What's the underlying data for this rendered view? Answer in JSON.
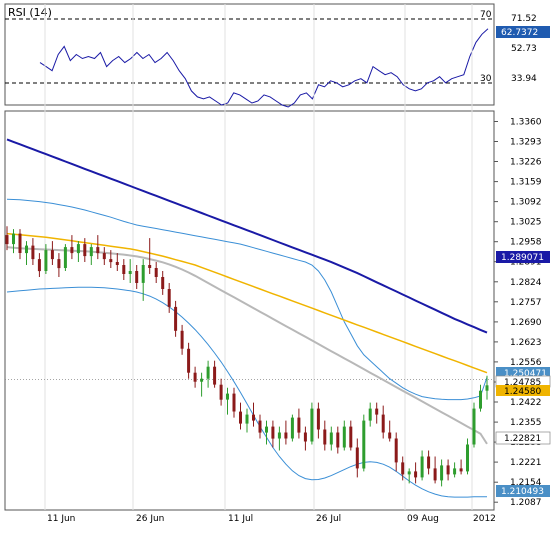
{
  "chart_data": [
    {
      "type": "line",
      "title": "RSI (14)",
      "ylim": [
        25,
        75
      ],
      "y_ticks": [
        71.52,
        52.73,
        33.94
      ],
      "reference_levels": [
        70,
        30
      ],
      "last_value_label": "62.7372",
      "series": [
        {
          "name": "RSI (14)",
          "color": "#1a1aa6",
          "values": [
            46,
            44,
            42,
            50,
            54,
            47,
            50,
            48,
            49,
            48,
            51,
            44,
            47,
            49,
            46,
            48,
            51,
            48,
            50,
            46,
            48,
            51,
            47,
            42,
            38,
            32,
            29,
            28,
            29,
            27,
            25,
            26,
            31,
            30,
            28,
            26,
            27,
            30,
            29,
            27,
            25,
            24,
            26,
            30,
            31,
            28,
            35,
            34,
            37,
            36,
            34,
            35,
            37,
            38,
            36,
            44,
            42,
            40,
            41,
            39,
            35,
            33,
            32,
            33,
            36,
            37,
            39,
            36,
            38,
            39,
            40,
            49,
            56,
            60,
            62.7
          ]
        }
      ]
    },
    {
      "type": "candlestick",
      "x_tick_labels": [
        "11 Jun",
        "26 Jun",
        "11 Jul",
        "26 Jul",
        "09 Aug",
        "2012"
      ],
      "y_tick_labels": [
        "1.3360",
        "1.3293",
        "1.3226",
        "1.3159",
        "1.3092",
        "1.3025",
        "1.2958",
        "1.2891",
        "1.2824",
        "1.2757",
        "1.2690",
        "1.2623",
        "1.2556",
        "1.2489",
        "1.2422",
        "1.2355",
        "1.2288",
        "1.2221",
        "1.2154",
        "1.2087"
      ],
      "ylim": [
        1.2061,
        1.3395
      ],
      "price_labels": [
        "1.250471",
        "1.24785",
        "1.24580",
        "1.289071",
        "1.22821",
        "1.210493"
      ],
      "colors": {
        "up": "#2e9d2e",
        "down": "#8b1a1a",
        "ma_long": "#1a1aa6",
        "ma_mid": "#f0b400",
        "ma_short": "#b8b8b8",
        "bands": "#3b8fd6"
      },
      "series": [
        {
          "name": "ma_long",
          "values": [
            1.33,
            1.3296,
            1.3292,
            1.3288,
            1.3284,
            1.328,
            1.3276,
            1.3272,
            1.3268,
            1.3264,
            1.326,
            1.3256,
            1.3252,
            1.3248,
            1.3244,
            1.324,
            1.3236,
            1.3232,
            1.3228,
            1.3224,
            1.322,
            1.3216,
            1.3212,
            1.3208,
            1.3204,
            1.32,
            1.3196,
            1.3192,
            1.3188,
            1.3184,
            1.318,
            1.3176,
            1.3172,
            1.3168,
            1.3164,
            1.316,
            1.3156,
            1.3152,
            1.3148,
            1.3144,
            1.314,
            1.3136,
            1.3132,
            1.3128,
            1.3124,
            1.312,
            1.3116,
            1.3112,
            1.3108,
            1.3104,
            1.31,
            1.3095,
            1.309,
            1.3085,
            1.308,
            1.3074,
            1.3068,
            1.3062,
            1.3056,
            1.305,
            1.3044,
            1.3038,
            1.3032,
            1.3026,
            1.302,
            1.3014,
            1.3008,
            1.3002,
            1.2996,
            1.299,
            1.2985,
            1.298,
            1.2975,
            1.297,
            1.2965
          ]
        },
        {
          "name": "ma_mid",
          "values": [
            1.2985,
            1.2983,
            1.2981,
            1.2979,
            1.2977,
            1.2975,
            1.2973,
            1.297,
            1.2967,
            1.2964,
            1.2961,
            1.2958,
            1.2955,
            1.2952,
            1.2949,
            1.2946,
            1.2943,
            1.294,
            1.2937,
            1.2934,
            1.293,
            1.2925,
            1.292,
            1.2915,
            1.291,
            1.2904,
            1.2898,
            1.2892,
            1.2886,
            1.288,
            1.2872,
            1.2864,
            1.2856,
            1.2848,
            1.284,
            1.2832,
            1.2824,
            1.2816,
            1.2808,
            1.28,
            1.2792,
            1.2784,
            1.2776,
            1.2768,
            1.276,
            1.2752,
            1.2744,
            1.2736,
            1.2728,
            1.272,
            1.2712,
            1.2704,
            1.2696,
            1.2688,
            1.268,
            1.2672,
            1.2664,
            1.2656,
            1.2648,
            1.264,
            1.2632,
            1.2624,
            1.2616,
            1.2608,
            1.26,
            1.2592,
            1.2584,
            1.2576,
            1.2568,
            1.256,
            1.2552,
            1.2544,
            1.2536,
            1.2528,
            1.252
          ]
        },
        {
          "name": "ma_short",
          "values": [
            1.294,
            1.2938,
            1.2936,
            1.2935,
            1.2934,
            1.2933,
            1.2932,
            1.2931,
            1.293,
            1.2929,
            1.2928,
            1.2927,
            1.2926,
            1.2925,
            1.2923,
            1.2921,
            1.2919,
            1.2917,
            1.2915,
            1.2912,
            1.2909,
            1.2905,
            1.29,
            1.2895,
            1.2889,
            1.2882,
            1.2874,
            1.2865,
            1.2855,
            1.2844,
            1.2832,
            1.282,
            1.2808,
            1.2796,
            1.2784,
            1.2772,
            1.276,
            1.2748,
            1.2736,
            1.2724,
            1.2712,
            1.27,
            1.2688,
            1.2676,
            1.2664,
            1.2652,
            1.264,
            1.2628,
            1.2616,
            1.2604,
            1.2592,
            1.258,
            1.2568,
            1.2556,
            1.2544,
            1.2532,
            1.252,
            1.2508,
            1.2496,
            1.2484,
            1.2472,
            1.246,
            1.2448,
            1.2436,
            1.2424,
            1.2412,
            1.24,
            1.2388,
            1.2376,
            1.2364,
            1.2352,
            1.234,
            1.2328,
            1.2316,
            1.2282
          ]
        },
        {
          "name": "bb_upper",
          "values": [
            1.31,
            1.3099,
            1.3098,
            1.3096,
            1.3094,
            1.3092,
            1.3089,
            1.3086,
            1.3082,
            1.3078,
            1.3074,
            1.3069,
            1.3064,
            1.3058,
            1.3052,
            1.3046,
            1.304,
            1.3033,
            1.3026,
            1.302,
            1.3014,
            1.301,
            1.3006,
            1.3002,
            1.2998,
            1.2994,
            1.299,
            1.2986,
            1.2982,
            1.2978,
            1.2974,
            1.297,
            1.2966,
            1.2962,
            1.2958,
            1.2954,
            1.295,
            1.2944,
            1.2938,
            1.2932,
            1.2926,
            1.292,
            1.2914,
            1.2908,
            1.2902,
            1.2896,
            1.289,
            1.288,
            1.286,
            1.283,
            1.279,
            1.274,
            1.269,
            1.265,
            1.261,
            1.258,
            1.256,
            1.254,
            1.252,
            1.25,
            1.2485,
            1.247,
            1.2458,
            1.2448,
            1.244,
            1.2436,
            1.2433,
            1.2431,
            1.243,
            1.243,
            1.243,
            1.2432,
            1.2436,
            1.2442,
            1.2505
          ]
        },
        {
          "name": "bb_lower",
          "values": [
            1.279,
            1.2792,
            1.2794,
            1.2796,
            1.2798,
            1.28,
            1.2801,
            1.2802,
            1.2803,
            1.2804,
            1.2805,
            1.2806,
            1.2806,
            1.2806,
            1.2805,
            1.2804,
            1.2802,
            1.28,
            1.2797,
            1.2794,
            1.279,
            1.2784,
            1.2776,
            1.2766,
            1.2754,
            1.274,
            1.2724,
            1.2706,
            1.2686,
            1.2664,
            1.264,
            1.2614,
            1.2586,
            1.2556,
            1.2524,
            1.249,
            1.2454,
            1.2416,
            1.2378,
            1.234,
            1.2304,
            1.227,
            1.224,
            1.2214,
            1.2192,
            1.2176,
            1.2166,
            1.2162,
            1.2163,
            1.2168,
            1.2176,
            1.2186,
            1.2196,
            1.2206,
            1.2214,
            1.222,
            1.2222,
            1.222,
            1.2214,
            1.2204,
            1.219,
            1.2174,
            1.2158,
            1.2144,
            1.2132,
            1.2122,
            1.2114,
            1.2108,
            1.2105,
            1.2104,
            1.2104,
            1.2104,
            1.2105,
            1.2105,
            1.2105
          ]
        },
        {
          "name": "candles",
          "ohlc": [
            [
              1.298,
              1.301,
              1.293,
              1.295
            ],
            [
              1.295,
              1.3,
              1.292,
              1.2985
            ],
            [
              1.2985,
              1.3,
              1.29,
              1.292
            ],
            [
              1.292,
              1.296,
              1.288,
              1.2945
            ],
            [
              1.2945,
              1.297,
              1.288,
              1.29
            ],
            [
              1.29,
              1.292,
              1.284,
              1.286
            ],
            [
              1.286,
              1.295,
              1.285,
              1.293
            ],
            [
              1.293,
              1.296,
              1.288,
              1.29
            ],
            [
              1.29,
              1.292,
              1.284,
              1.287
            ],
            [
              1.287,
              1.295,
              1.286,
              1.294
            ],
            [
              1.294,
              1.298,
              1.29,
              1.292
            ],
            [
              1.292,
              1.296,
              1.289,
              1.295
            ],
            [
              1.295,
              1.297,
              1.289,
              1.291
            ],
            [
              1.291,
              1.295,
              1.288,
              1.294
            ],
            [
              1.294,
              1.298,
              1.29,
              1.292
            ],
            [
              1.292,
              1.294,
              1.288,
              1.29
            ],
            [
              1.29,
              1.293,
              1.287,
              1.289
            ],
            [
              1.289,
              1.292,
              1.286,
              1.288
            ],
            [
              1.288,
              1.29,
              1.283,
              1.285
            ],
            [
              1.285,
              1.29,
              1.282,
              1.286
            ],
            [
              1.286,
              1.288,
              1.28,
              1.282
            ],
            [
              1.282,
              1.29,
              1.276,
              1.288
            ],
            [
              1.288,
              1.297,
              1.285,
              1.287
            ],
            [
              1.287,
              1.289,
              1.282,
              1.284
            ],
            [
              1.284,
              1.286,
              1.278,
              1.28
            ],
            [
              1.28,
              1.282,
              1.272,
              1.274
            ],
            [
              1.274,
              1.276,
              1.264,
              1.266
            ],
            [
              1.266,
              1.268,
              1.258,
              1.26
            ],
            [
              1.26,
              1.262,
              1.25,
              1.252
            ],
            [
              1.252,
              1.254,
              1.247,
              1.249
            ],
            [
              1.249,
              1.252,
              1.244,
              1.25
            ],
            [
              1.25,
              1.256,
              1.247,
              1.254
            ],
            [
              1.254,
              1.256,
              1.247,
              1.248
            ],
            [
              1.248,
              1.25,
              1.241,
              1.243
            ],
            [
              1.243,
              1.247,
              1.238,
              1.245
            ],
            [
              1.245,
              1.247,
              1.237,
              1.239
            ],
            [
              1.239,
              1.242,
              1.233,
              1.235
            ],
            [
              1.235,
              1.24,
              1.232,
              1.238
            ],
            [
              1.238,
              1.242,
              1.234,
              1.236
            ],
            [
              1.236,
              1.238,
              1.23,
              1.232
            ],
            [
              1.232,
              1.236,
              1.228,
              1.234
            ],
            [
              1.234,
              1.236,
              1.227,
              1.23
            ],
            [
              1.23,
              1.234,
              1.226,
              1.232
            ],
            [
              1.232,
              1.236,
              1.228,
              1.23
            ],
            [
              1.23,
              1.238,
              1.229,
              1.237
            ],
            [
              1.237,
              1.24,
              1.23,
              1.232
            ],
            [
              1.232,
              1.234,
              1.226,
              1.229
            ],
            [
              1.229,
              1.242,
              1.228,
              1.24
            ],
            [
              1.24,
              1.242,
              1.23,
              1.233
            ],
            [
              1.233,
              1.236,
              1.226,
              1.228
            ],
            [
              1.228,
              1.234,
              1.226,
              1.232
            ],
            [
              1.232,
              1.234,
              1.225,
              1.227
            ],
            [
              1.227,
              1.236,
              1.226,
              1.234
            ],
            [
              1.234,
              1.236,
              1.226,
              1.227
            ],
            [
              1.227,
              1.23,
              1.217,
              1.22
            ],
            [
              1.22,
              1.238,
              1.219,
              1.236
            ],
            [
              1.236,
              1.242,
              1.234,
              1.24
            ],
            [
              1.24,
              1.242,
              1.235,
              1.238
            ],
            [
              1.238,
              1.241,
              1.23,
              1.232
            ],
            [
              1.232,
              1.236,
              1.229,
              1.23
            ],
            [
              1.23,
              1.232,
              1.219,
              1.222
            ],
            [
              1.222,
              1.224,
              1.216,
              1.218
            ],
            [
              1.218,
              1.22,
              1.215,
              1.219
            ],
            [
              1.219,
              1.222,
              1.215,
              1.217
            ],
            [
              1.217,
              1.226,
              1.216,
              1.224
            ],
            [
              1.224,
              1.226,
              1.218,
              1.22
            ],
            [
              1.22,
              1.224,
              1.215,
              1.216
            ],
            [
              1.216,
              1.223,
              1.214,
              1.221
            ],
            [
              1.221,
              1.223,
              1.216,
              1.218
            ],
            [
              1.218,
              1.222,
              1.217,
              1.22
            ],
            [
              1.22,
              1.223,
              1.218,
              1.219
            ],
            [
              1.219,
              1.23,
              1.218,
              1.228
            ],
            [
              1.228,
              1.242,
              1.227,
              1.24
            ],
            [
              1.24,
              1.248,
              1.239,
              1.246
            ],
            [
              1.246,
              1.251,
              1.243,
              1.2478
            ]
          ]
        }
      ]
    }
  ]
}
